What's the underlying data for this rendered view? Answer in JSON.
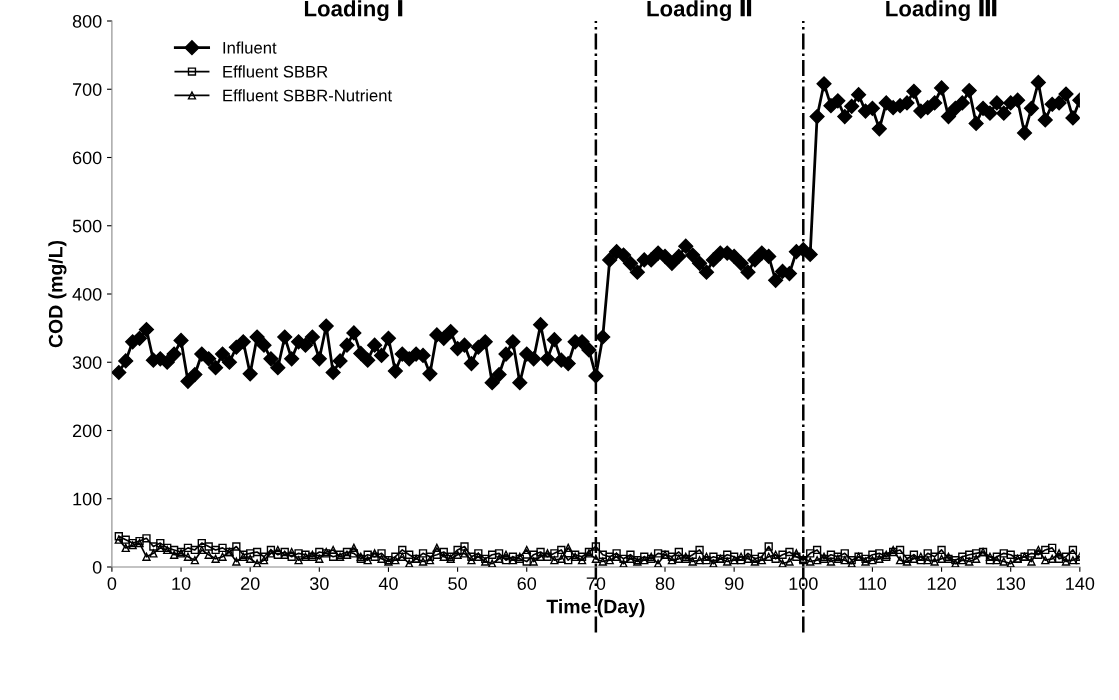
{
  "chart_data": {
    "type": "line",
    "xlabel": "Time (Day)",
    "ylabel": "COD (mg/L)",
    "x": [
      1,
      2,
      3,
      4,
      5,
      6,
      7,
      8,
      9,
      10,
      11,
      12,
      13,
      14,
      15,
      16,
      17,
      18,
      19,
      20,
      21,
      22,
      23,
      24,
      25,
      26,
      27,
      28,
      29,
      30,
      31,
      32,
      33,
      34,
      35,
      36,
      37,
      38,
      39,
      40,
      41,
      42,
      43,
      44,
      45,
      46,
      47,
      48,
      49,
      50,
      51,
      52,
      53,
      54,
      55,
      56,
      57,
      58,
      59,
      60,
      61,
      62,
      63,
      64,
      65,
      66,
      67,
      68,
      69,
      70,
      71,
      72,
      73,
      74,
      75,
      76,
      77,
      78,
      79,
      80,
      81,
      82,
      83,
      84,
      85,
      86,
      87,
      88,
      89,
      90,
      91,
      92,
      93,
      94,
      95,
      96,
      97,
      98,
      99,
      100,
      101,
      102,
      103,
      104,
      105,
      106,
      107,
      108,
      109,
      110,
      111,
      112,
      113,
      114,
      115,
      116,
      117,
      118,
      119,
      120,
      121,
      122,
      123,
      124,
      125,
      126,
      127,
      128,
      129,
      130,
      131,
      132,
      133,
      134,
      135,
      136,
      137,
      138,
      139,
      140
    ],
    "series": [
      {
        "name": "Influent",
        "color": "#000000",
        "marker": "diamond",
        "values": [
          285,
          302,
          330,
          335,
          348,
          303,
          305,
          300,
          312,
          332,
          272,
          282,
          312,
          305,
          292,
          312,
          300,
          322,
          330,
          283,
          337,
          325,
          305,
          292,
          337,
          305,
          330,
          325,
          337,
          305,
          353,
          285,
          302,
          325,
          343,
          313,
          303,
          325,
          310,
          335,
          287,
          312,
          305,
          312,
          310,
          283,
          340,
          335,
          345,
          320,
          325,
          298,
          322,
          330,
          270,
          282,
          312,
          330,
          270,
          312,
          305,
          355,
          305,
          333,
          303,
          298,
          330,
          330,
          318,
          280,
          337,
          450,
          462,
          457,
          445,
          432,
          450,
          450,
          460,
          455,
          445,
          455,
          470,
          457,
          445,
          432,
          450,
          460,
          460,
          455,
          445,
          432,
          450,
          460,
          455,
          420,
          433,
          430,
          462,
          465,
          458,
          660,
          708,
          676,
          683,
          660,
          675,
          692,
          668,
          672,
          642,
          680,
          673,
          676,
          680,
          697,
          668,
          673,
          680,
          702,
          660,
          672,
          680,
          698,
          650,
          672,
          665,
          680,
          665,
          680,
          684,
          636,
          672,
          710,
          655,
          678,
          680,
          693,
          658,
          684
        ]
      },
      {
        "name": "Effluent SBBR",
        "color": "#000000",
        "marker": "square",
        "values": [
          45,
          40,
          35,
          38,
          42,
          30,
          35,
          28,
          25,
          22,
          28,
          25,
          35,
          30,
          25,
          28,
          22,
          30,
          18,
          20,
          22,
          15,
          25,
          18,
          22,
          15,
          20,
          18,
          15,
          22,
          20,
          15,
          18,
          22,
          20,
          12,
          18,
          15,
          20,
          10,
          15,
          25,
          18,
          12,
          20,
          15,
          18,
          22,
          15,
          25,
          30,
          15,
          20,
          12,
          18,
          20,
          10,
          15,
          12,
          8,
          18,
          22,
          15,
          20,
          25,
          10,
          18,
          15,
          22,
          30,
          18,
          15,
          20,
          12,
          18,
          10,
          15,
          12,
          20,
          18,
          15,
          22,
          12,
          18,
          25,
          10,
          15,
          12,
          18,
          15,
          10,
          20,
          12,
          15,
          30,
          12,
          18,
          22,
          15,
          10,
          20,
          25,
          12,
          18,
          15,
          20,
          10,
          15,
          12,
          18,
          20,
          15,
          22,
          25,
          12,
          18,
          10,
          20,
          15,
          25,
          12,
          10,
          15,
          18,
          20,
          22,
          10,
          15,
          20,
          18,
          12,
          15,
          20,
          18,
          25,
          28,
          12,
          15,
          25,
          10
        ]
      },
      {
        "name": "Effluent SBBR-Nutrient",
        "color": "#000000",
        "marker": "triangle",
        "values": [
          40,
          28,
          32,
          35,
          15,
          20,
          28,
          25,
          18,
          20,
          15,
          10,
          25,
          18,
          12,
          15,
          22,
          8,
          15,
          12,
          5,
          10,
          20,
          25,
          18,
          22,
          10,
          15,
          18,
          12,
          22,
          25,
          15,
          18,
          28,
          15,
          10,
          20,
          12,
          8,
          10,
          15,
          5,
          12,
          8,
          10,
          28,
          15,
          12,
          18,
          20,
          10,
          15,
          8,
          5,
          12,
          18,
          10,
          15,
          25,
          8,
          15,
          20,
          10,
          12,
          28,
          15,
          10,
          20,
          12,
          8,
          10,
          15,
          5,
          12,
          8,
          10,
          15,
          5,
          18,
          10,
          12,
          15,
          8,
          10,
          15,
          5,
          12,
          8,
          10,
          15,
          12,
          8,
          10,
          15,
          18,
          5,
          8,
          20,
          12,
          8,
          10,
          15,
          8,
          12,
          10,
          5,
          15,
          8,
          10,
          12,
          18,
          25,
          10,
          8,
          12,
          15,
          10,
          8,
          12,
          15,
          5,
          10,
          8,
          12,
          22,
          15,
          10,
          8,
          5,
          12,
          15,
          8,
          25,
          10,
          12,
          20,
          8,
          10,
          15
        ]
      }
    ],
    "xlim": [
      0,
      140
    ],
    "xticks": [
      0,
      10,
      20,
      30,
      40,
      50,
      60,
      70,
      80,
      90,
      100,
      110,
      120,
      130,
      140
    ],
    "ylim": [
      0,
      800
    ],
    "yticks": [
      0,
      100,
      200,
      300,
      400,
      500,
      600,
      700,
      800
    ],
    "ref_lines": [
      {
        "axis": "x",
        "value": 70,
        "line_style": "dashdot",
        "color": "#000000"
      },
      {
        "axis": "x",
        "value": 100,
        "line_style": "dashdot",
        "color": "#000000"
      }
    ],
    "annotations": [
      "Loading Ⅰ",
      "Loading Ⅱ",
      "Loading Ⅲ"
    ],
    "legend": "top left",
    "grid": false,
    "line_style": "solid"
  }
}
